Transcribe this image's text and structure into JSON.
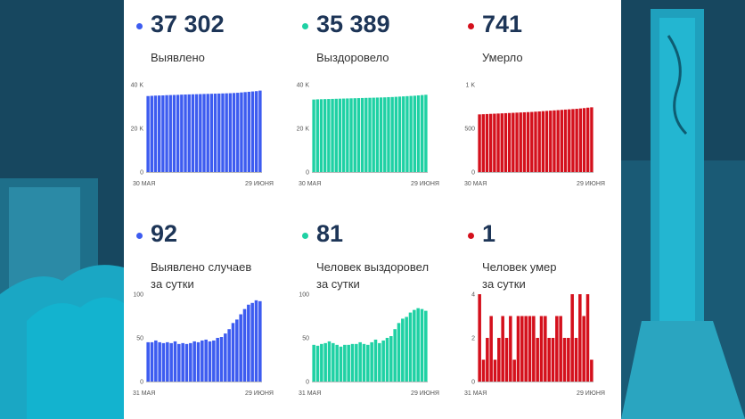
{
  "colors": {
    "blue": "#3d5cf0",
    "teal": "#1fd1a4",
    "red": "#d4101c",
    "number": "#1d3557"
  },
  "panels": [
    {
      "value": "37 302",
      "label1": "Выявлено",
      "label2": "",
      "color": "blue",
      "xstart": "30 МАЯ",
      "xend": "29 ИЮНЯ",
      "yticks": [
        "0",
        "20 K",
        "40 K"
      ]
    },
    {
      "value": "35 389",
      "label1": "Выздоровело",
      "label2": "",
      "color": "teal",
      "xstart": "30 МАЯ",
      "xend": "29 ИЮНЯ",
      "yticks": [
        "0",
        "20 K",
        "40 K"
      ]
    },
    {
      "value": "741",
      "label1": "Умерло",
      "label2": "",
      "color": "red",
      "xstart": "30 МАЯ",
      "xend": "29 ИЮНЯ",
      "yticks": [
        "0",
        "500",
        "1 K"
      ]
    },
    {
      "value": "92",
      "label1": "Выявлено случаев",
      "label2": "за сутки",
      "color": "blue",
      "xstart": "31 МАЯ",
      "xend": "29 ИЮНЯ",
      "yticks": [
        "0",
        "50",
        "100"
      ]
    },
    {
      "value": "81",
      "label1": "Человек выздоровел",
      "label2": "за сутки",
      "color": "teal",
      "xstart": "31 МАЯ",
      "xend": "29 ИЮНЯ",
      "yticks": [
        "0",
        "50",
        "100"
      ]
    },
    {
      "value": "1",
      "label1": "Человек умер",
      "label2": "за сутки",
      "color": "red",
      "xstart": "31 МАЯ",
      "xend": "29 ИЮНЯ",
      "yticks": [
        "0",
        "2",
        "4"
      ]
    }
  ],
  "chart_data": [
    {
      "type": "bar",
      "title": "Выявлено",
      "ylim": [
        0,
        40000
      ],
      "x_first": "30 МАЯ",
      "x_last": "29 ИЮНЯ",
      "values": [
        34800,
        34900,
        35000,
        35050,
        35100,
        35200,
        35250,
        35300,
        35350,
        35450,
        35500,
        35550,
        35600,
        35650,
        35700,
        35750,
        35800,
        35850,
        35900,
        35950,
        36000,
        36050,
        36100,
        36200,
        36300,
        36450,
        36600,
        36750,
        36900,
        37050,
        37302
      ]
    },
    {
      "type": "bar",
      "title": "Выздоровело",
      "ylim": [
        0,
        40000
      ],
      "x_first": "30 МАЯ",
      "x_last": "29 ИЮНЯ",
      "values": [
        33200,
        33300,
        33350,
        33400,
        33450,
        33500,
        33550,
        33600,
        33650,
        33700,
        33750,
        33800,
        33850,
        33900,
        33950,
        34000,
        34050,
        34100,
        34150,
        34200,
        34300,
        34350,
        34450,
        34550,
        34650,
        34750,
        34850,
        34950,
        35100,
        35250,
        35389
      ]
    },
    {
      "type": "bar",
      "title": "Умерло",
      "ylim": [
        0,
        1000
      ],
      "x_first": "30 МАЯ",
      "x_last": "29 ИЮНЯ",
      "values": [
        660,
        662,
        664,
        666,
        668,
        670,
        672,
        674,
        676,
        678,
        680,
        682,
        684,
        686,
        688,
        691,
        694,
        697,
        700,
        703,
        706,
        709,
        712,
        715,
        718,
        721,
        724,
        728,
        732,
        737,
        741
      ]
    },
    {
      "type": "bar",
      "title": "Выявлено случаев за сутки",
      "ylim": [
        0,
        100
      ],
      "x_first": "31 МАЯ",
      "x_last": "29 ИЮНЯ",
      "values": [
        45,
        45,
        47,
        45,
        44,
        45,
        44,
        46,
        43,
        44,
        43,
        44,
        46,
        45,
        47,
        48,
        46,
        47,
        50,
        51,
        55,
        60,
        67,
        71,
        77,
        83,
        88,
        90,
        93,
        92
      ]
    },
    {
      "type": "bar",
      "title": "Человек выздоровел за сутки",
      "ylim": [
        0,
        100
      ],
      "x_first": "31 МАЯ",
      "x_last": "29 ИЮНЯ",
      "values": [
        42,
        41,
        43,
        44,
        46,
        44,
        42,
        40,
        42,
        42,
        43,
        43,
        45,
        43,
        42,
        45,
        48,
        44,
        47,
        50,
        52,
        60,
        67,
        72,
        74,
        79,
        82,
        84,
        83,
        81
      ]
    },
    {
      "type": "bar",
      "title": "Человек умер за сутки",
      "ylim": [
        0,
        4
      ],
      "x_first": "31 МАЯ",
      "x_last": "29 ИЮНЯ",
      "values": [
        4,
        1,
        2,
        3,
        1,
        2,
        3,
        2,
        3,
        1,
        3,
        3,
        3,
        3,
        3,
        2,
        3,
        3,
        2,
        2,
        3,
        3,
        2,
        2,
        4,
        2,
        4,
        3,
        4,
        1
      ]
    }
  ]
}
